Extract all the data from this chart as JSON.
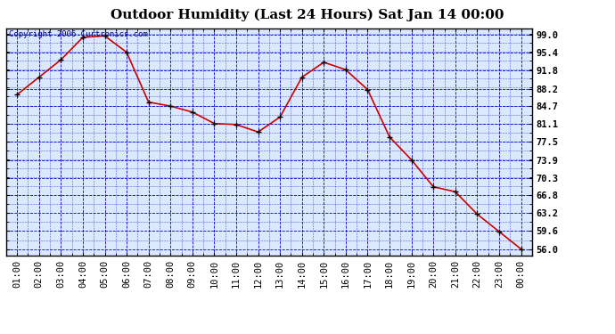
{
  "title": "Outdoor Humidity (Last 24 Hours) Sat Jan 14 00:00",
  "copyright": "Copyright 2006 Curtronics.com",
  "x_labels": [
    "01:00",
    "02:00",
    "03:00",
    "04:00",
    "05:00",
    "06:00",
    "07:00",
    "08:00",
    "09:00",
    "10:00",
    "11:00",
    "12:00",
    "13:00",
    "14:00",
    "15:00",
    "16:00",
    "17:00",
    "18:00",
    "19:00",
    "20:00",
    "21:00",
    "22:00",
    "23:00",
    "00:00"
  ],
  "y_values": [
    87.0,
    90.5,
    94.0,
    98.5,
    98.8,
    95.5,
    85.5,
    84.7,
    83.5,
    81.2,
    81.0,
    79.5,
    82.5,
    90.5,
    93.5,
    92.0,
    88.0,
    78.5,
    73.9,
    68.5,
    67.5,
    63.0,
    59.5,
    56.0
  ],
  "line_color": "#cc0000",
  "marker_color": "#000000",
  "bg_color": "#ffffff",
  "plot_bg": "#dbe9ff",
  "grid_color": "#0000cc",
  "title_color": "#000000",
  "border_color": "#000000",
  "y_ticks": [
    56.0,
    59.6,
    63.2,
    66.8,
    70.3,
    73.9,
    77.5,
    81.1,
    84.7,
    88.2,
    91.8,
    95.4,
    99.0
  ],
  "y_tick_labels": [
    "56.0",
    "59.6",
    "63.2",
    "66.8",
    "70.3",
    "73.9",
    "77.5",
    "81.1",
    "84.7",
    "88.2",
    "91.8",
    "95.4",
    "99.0"
  ],
  "ylim_min": 54.7,
  "ylim_max": 100.3,
  "title_fontsize": 11,
  "axis_fontsize": 7.5,
  "copyright_fontsize": 6.5
}
